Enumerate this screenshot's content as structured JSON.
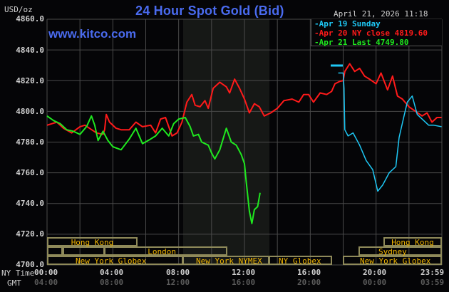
{
  "header": {
    "title": "24 Hour Spot Gold (Bid)",
    "datetime": "April 21, 2026 11:18",
    "unit": "USD/oz",
    "watermark": "www.kitco.com"
  },
  "legend": [
    {
      "label": "Apr 19 Sunday",
      "color": "#1ec8f5"
    },
    {
      "label": "Apr 20 NY close 4819.60",
      "color": "#ff1a1a"
    },
    {
      "label": "Apr 21 Last 4749.80",
      "color": "#1fe81f"
    }
  ],
  "y_axis": {
    "ticks": [
      "4860.0",
      "4840.0",
      "4820.0",
      "4800.0",
      "4780.0",
      "4760.0",
      "4740.0",
      "4720.0",
      "4700.0"
    ]
  },
  "x_axis": {
    "row1_label": "NY Time",
    "row2_label": "GMT",
    "ny_ticks": [
      "00:00",
      "04:00",
      "08:00",
      "12:00",
      "16:00",
      "20:00",
      "23:59"
    ],
    "gmt_ticks": [
      "04:00",
      "08:00",
      "12:00",
      "16:00",
      "20:00",
      "00:00",
      "03:59"
    ]
  },
  "sessions": {
    "hong_kong_1": "Hong Kong",
    "london": "London",
    "ny_globex_1": "New York Globex",
    "ny_nymex": "New York NYMEX",
    "ny_globex_2": "NY Globex",
    "hong_kong_2": "Hong Kong",
    "sydney": "Sydney",
    "ny_globex_3": "New York Globex"
  },
  "colors": {
    "background": "#050507",
    "grid": "#4a4a4a",
    "nymex_shade": "#161816",
    "title": "#4a6bef",
    "session_text": "#f2b600",
    "session_border": "#8f8a5a"
  },
  "chart_data": {
    "type": "line",
    "title": "24 Hour Spot Gold (Bid)",
    "xlabel": "NY Time / GMT",
    "ylabel": "USD/oz",
    "ylim": [
      4700,
      4860
    ],
    "xlim_hours": [
      0,
      24
    ],
    "grid": true,
    "legend_position": "top-right",
    "series": [
      {
        "name": "Apr 19 Sunday",
        "color": "#1ec8f5",
        "points_hour_price": [
          [
            17.7,
            4825
          ],
          [
            18.0,
            4825
          ],
          [
            18.05,
            4815
          ],
          [
            18.1,
            4788
          ],
          [
            18.3,
            4784
          ],
          [
            18.6,
            4786
          ],
          [
            19.0,
            4778
          ],
          [
            19.4,
            4768
          ],
          [
            19.8,
            4762
          ],
          [
            20.1,
            4748
          ],
          [
            20.4,
            4752
          ],
          [
            20.8,
            4760
          ],
          [
            21.2,
            4764
          ],
          [
            21.4,
            4783
          ],
          [
            21.7,
            4797
          ],
          [
            21.9,
            4806
          ],
          [
            22.2,
            4810
          ],
          [
            22.5,
            4798
          ],
          [
            22.9,
            4794
          ],
          [
            23.2,
            4791
          ],
          [
            23.5,
            4791
          ],
          [
            23.98,
            4790
          ]
        ]
      },
      {
        "name": "Apr 20 NY close 4819.60",
        "color": "#ff1a1a",
        "points_hour_price": [
          [
            0.0,
            4791
          ],
          [
            0.6,
            4793
          ],
          [
            1.0,
            4789
          ],
          [
            1.5,
            4786
          ],
          [
            2.0,
            4790
          ],
          [
            2.3,
            4791
          ],
          [
            3.0,
            4786
          ],
          [
            3.4,
            4785
          ],
          [
            3.5,
            4788
          ],
          [
            3.6,
            4798
          ],
          [
            3.8,
            4793
          ],
          [
            4.2,
            4789
          ],
          [
            4.5,
            4788
          ],
          [
            5.0,
            4788
          ],
          [
            5.4,
            4793
          ],
          [
            5.8,
            4790
          ],
          [
            6.3,
            4791
          ],
          [
            6.6,
            4786
          ],
          [
            6.9,
            4795
          ],
          [
            7.2,
            4796
          ],
          [
            7.6,
            4784
          ],
          [
            7.9,
            4786
          ],
          [
            8.2,
            4793
          ],
          [
            8.5,
            4806
          ],
          [
            8.8,
            4811
          ],
          [
            9.0,
            4804
          ],
          [
            9.3,
            4803
          ],
          [
            9.6,
            4807
          ],
          [
            9.8,
            4802
          ],
          [
            10.1,
            4815
          ],
          [
            10.5,
            4819
          ],
          [
            10.9,
            4816
          ],
          [
            11.1,
            4812
          ],
          [
            11.4,
            4821
          ],
          [
            11.7,
            4815
          ],
          [
            12.0,
            4808
          ],
          [
            12.3,
            4799
          ],
          [
            12.6,
            4805
          ],
          [
            12.9,
            4803
          ],
          [
            13.2,
            4797
          ],
          [
            13.6,
            4799
          ],
          [
            14.0,
            4802
          ],
          [
            14.4,
            4807
          ],
          [
            14.9,
            4808
          ],
          [
            15.3,
            4806
          ],
          [
            15.6,
            4811
          ],
          [
            15.9,
            4811
          ],
          [
            16.2,
            4806
          ],
          [
            16.6,
            4812
          ],
          [
            17.0,
            4811
          ],
          [
            17.3,
            4813
          ],
          [
            17.5,
            4818
          ],
          [
            17.8,
            4819.6
          ],
          [
            18.0,
            4820
          ],
          [
            18.1,
            4826
          ],
          [
            18.4,
            4831
          ],
          [
            18.7,
            4826
          ],
          [
            19.0,
            4828
          ],
          [
            19.3,
            4823
          ],
          [
            19.6,
            4821
          ],
          [
            20.0,
            4818
          ],
          [
            20.3,
            4825
          ],
          [
            20.7,
            4814
          ],
          [
            21.0,
            4823
          ],
          [
            21.3,
            4810
          ],
          [
            21.6,
            4808
          ],
          [
            22.0,
            4803
          ],
          [
            22.4,
            4800
          ],
          [
            22.8,
            4797
          ],
          [
            23.1,
            4799
          ],
          [
            23.4,
            4793
          ],
          [
            23.7,
            4796
          ],
          [
            23.98,
            4796
          ]
        ]
      },
      {
        "name": "Apr 21 Last 4749.80",
        "color": "#1fe81f",
        "points_hour_price": [
          [
            0.0,
            4797
          ],
          [
            0.4,
            4794
          ],
          [
            0.8,
            4792
          ],
          [
            1.2,
            4788
          ],
          [
            1.6,
            4787
          ],
          [
            2.0,
            4785
          ],
          [
            2.4,
            4790
          ],
          [
            2.7,
            4797
          ],
          [
            2.9,
            4791
          ],
          [
            3.1,
            4781
          ],
          [
            3.4,
            4787
          ],
          [
            3.7,
            4781
          ],
          [
            4.0,
            4777
          ],
          [
            4.5,
            4775
          ],
          [
            5.0,
            4782
          ],
          [
            5.4,
            4789
          ],
          [
            5.8,
            4779
          ],
          [
            6.3,
            4782
          ],
          [
            6.6,
            4784
          ],
          [
            7.0,
            4789
          ],
          [
            7.4,
            4784
          ],
          [
            7.7,
            4792
          ],
          [
            8.0,
            4795
          ],
          [
            8.4,
            4796
          ],
          [
            8.7,
            4790
          ],
          [
            8.9,
            4784
          ],
          [
            9.2,
            4785
          ],
          [
            9.4,
            4780
          ],
          [
            9.8,
            4778
          ],
          [
            10.0,
            4773
          ],
          [
            10.2,
            4769
          ],
          [
            10.5,
            4775
          ],
          [
            10.9,
            4789
          ],
          [
            11.2,
            4780
          ],
          [
            11.5,
            4778
          ],
          [
            11.8,
            4772
          ],
          [
            12.0,
            4766
          ],
          [
            12.1,
            4755
          ],
          [
            12.3,
            4735
          ],
          [
            12.45,
            4727
          ],
          [
            12.6,
            4736
          ],
          [
            12.8,
            4738
          ],
          [
            12.95,
            4747
          ]
        ]
      }
    ]
  }
}
